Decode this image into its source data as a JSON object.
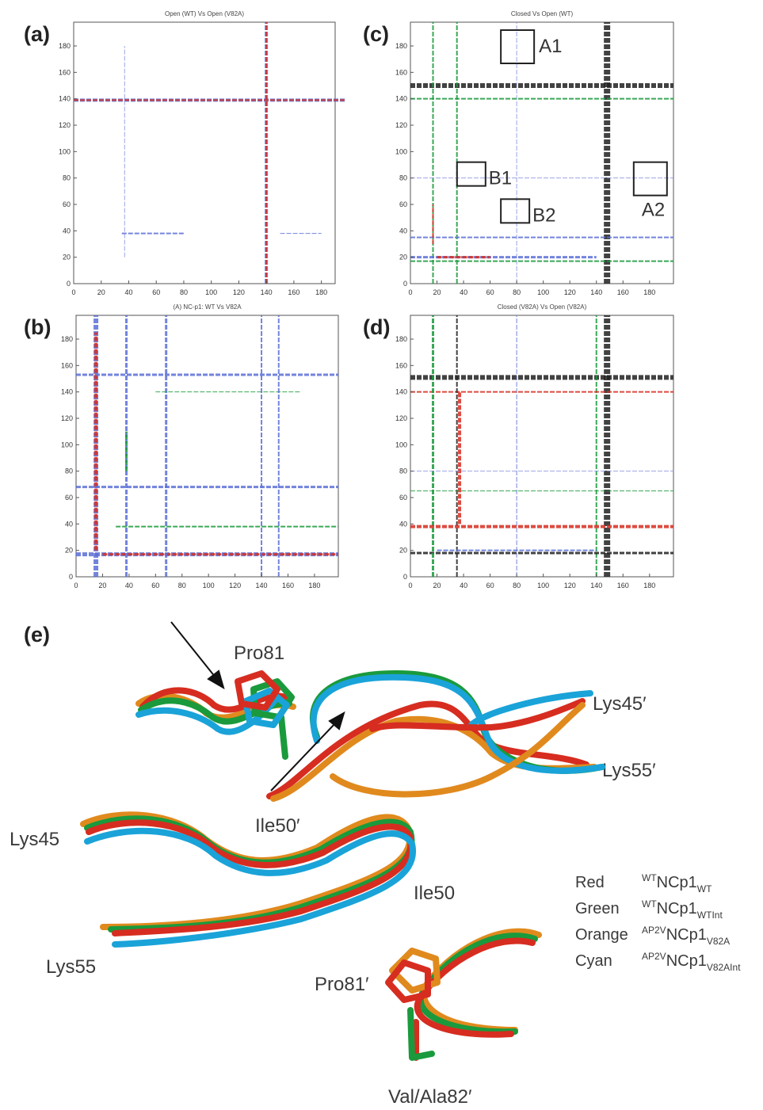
{
  "panels": [
    {
      "label": "(a)",
      "title": "Open (WT) Vs Open (V82A)",
      "xlim": [
        0,
        190
      ],
      "ylim": [
        0,
        198
      ],
      "xticks": [
        0,
        20,
        40,
        60,
        80,
        100,
        120,
        140,
        160,
        180
      ],
      "yticks": [
        0,
        20,
        40,
        60,
        80,
        100,
        120,
        140,
        160,
        180
      ],
      "annotations": []
    },
    {
      "label": "(b)",
      "title": "(A) NC-p1: WT Vs V82A",
      "xlim": [
        0,
        198
      ],
      "ylim": [
        0,
        198
      ],
      "xticks": [
        0,
        20,
        40,
        60,
        80,
        100,
        120,
        140,
        160,
        180
      ],
      "yticks": [
        0,
        20,
        40,
        60,
        80,
        100,
        120,
        140,
        160,
        180
      ],
      "annotations": []
    },
    {
      "label": "(c)",
      "title": "Closed Vs Open (WT)",
      "xlim": [
        0,
        198
      ],
      "ylim": [
        0,
        198
      ],
      "xticks": [
        0,
        20,
        40,
        60,
        80,
        100,
        120,
        140,
        160,
        180
      ],
      "yticks": [
        0,
        20,
        40,
        60,
        80,
        100,
        120,
        140,
        160,
        180
      ],
      "annotations": [
        "A1",
        "B1",
        "B2",
        "A2"
      ]
    },
    {
      "label": "(d)",
      "title": "Closed (V82A) Vs Open (V82A)",
      "xlim": [
        0,
        198
      ],
      "ylim": [
        0,
        198
      ],
      "xticks": [
        0,
        20,
        40,
        60,
        80,
        100,
        120,
        140,
        160,
        180
      ],
      "yticks": [
        0,
        20,
        40,
        60,
        80,
        100,
        120,
        140,
        160,
        180
      ],
      "annotations": []
    }
  ],
  "structure": {
    "label": "(e)",
    "residues": [
      "Pro81",
      "Lys45′",
      "Lys55′",
      "Ile50′",
      "Lys45",
      "Ile50",
      "Lys55",
      "Pro81′",
      "Val/Ala82′"
    ],
    "legend": [
      {
        "color": "Red",
        "sup": "WT",
        "main": "NCp1",
        "sub": "WT"
      },
      {
        "color": "Green",
        "sup": "WT",
        "main": "NCp1",
        "sub": "WTInt"
      },
      {
        "color": "Orange",
        "sup": "AP2V",
        "main": "NCp1",
        "sub": "V82A"
      },
      {
        "color": "Cyan",
        "sup": "AP2V",
        "main": "NCp1",
        "sub": "V82AInt"
      }
    ]
  }
}
